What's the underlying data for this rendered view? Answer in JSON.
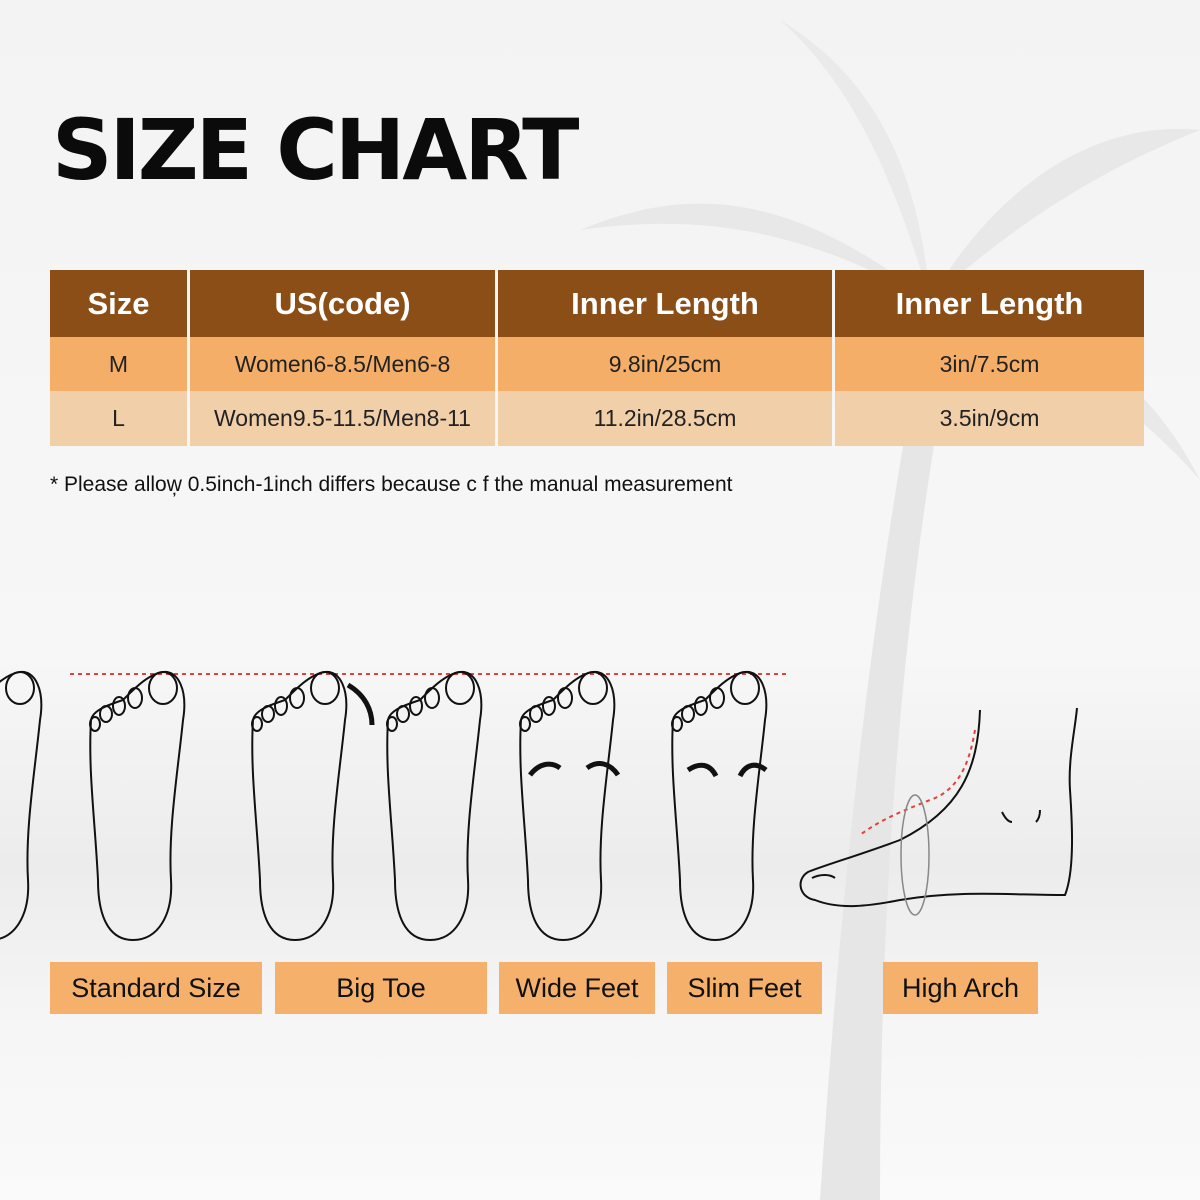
{
  "title": "SIZE CHART",
  "table": {
    "headers": [
      "Size",
      "US(code)",
      "Inner Length",
      "Inner Length"
    ],
    "rows": [
      [
        "M",
        "Women6-8.5/Men6-8",
        "9.8in/25cm",
        "3in/7.5cm"
      ],
      [
        "L",
        "Women9.5-11.5/Men8-11",
        "11.2in/28.5cm",
        "3.5in/9cm"
      ]
    ]
  },
  "note": "* Please allow̦ 0.5inch-1inch differs because c f the manual measurement",
  "foot_types": [
    "Standard Size",
    "Big Toe",
    "Wide Feet",
    "Slim Feet",
    "High Arch"
  ],
  "colors": {
    "header": "#8b4e17",
    "row_m": "#f4ae67",
    "row_l": "#f1cfa9",
    "label": "#f5b16c",
    "guide_line": "#e0413a"
  }
}
